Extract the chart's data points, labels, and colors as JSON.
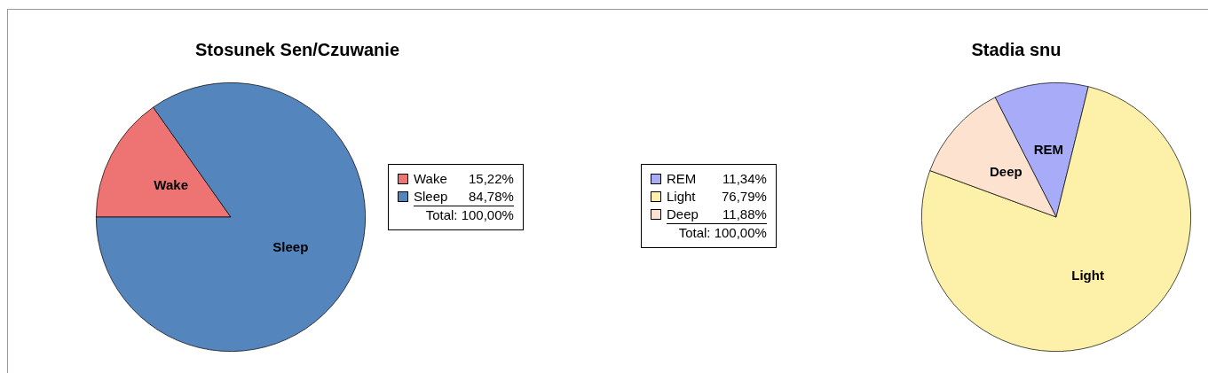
{
  "chart_data": [
    {
      "type": "pie",
      "title": "Stosunek Sen/Czuwanie",
      "categories": [
        "Wake",
        "Sleep"
      ],
      "values": [
        15.22,
        84.78
      ],
      "colors": [
        "#ee7474",
        "#5585bd"
      ],
      "value_labels": [
        "15,22%",
        "84,78%"
      ],
      "annotations": [
        "Total: 100,00%"
      ],
      "legend": "right"
    },
    {
      "type": "pie",
      "title": "Stadia snu",
      "categories": [
        "REM",
        "Light",
        "Deep"
      ],
      "values": [
        11.34,
        76.79,
        11.88
      ],
      "colors": [
        "#a8acf8",
        "#fdf0a8",
        "#fde2cf"
      ],
      "value_labels": [
        "11,34%",
        "76,79%",
        "11,88%"
      ],
      "annotations": [
        "Total: 100,00%"
      ],
      "legend": "left"
    }
  ]
}
